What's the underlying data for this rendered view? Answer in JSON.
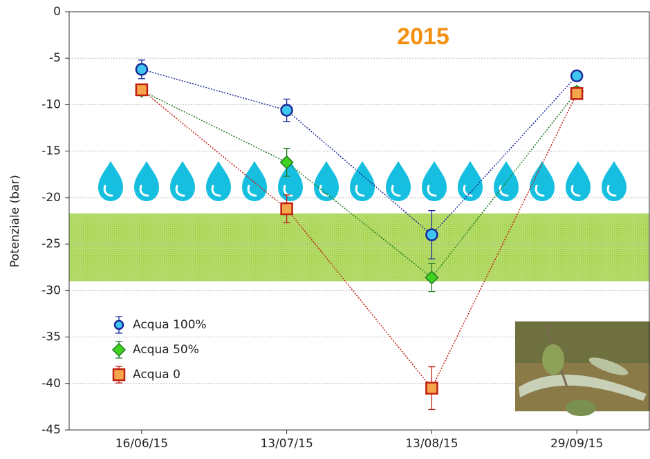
{
  "chart_data": {
    "type": "line",
    "title": "2015",
    "y_label": "Potenziale (bar)",
    "categories": [
      "16/06/15",
      "13/07/15",
      "13/08/15",
      "29/09/15"
    ],
    "series": [
      {
        "name": "Acqua 100%",
        "color": "#3ec6ee",
        "edge": "#1a2a9a",
        "marker": "circle",
        "values": [
          -6.2,
          -10.6,
          -24.0,
          -6.9
        ],
        "errors": [
          1.0,
          1.2,
          2.6,
          0.5
        ]
      },
      {
        "name": "Acqua 50%",
        "color": "#3fd21f",
        "edge": "#1f7a1f",
        "marker": "diamond",
        "values": [
          -8.5,
          -16.2,
          -28.6,
          -8.6
        ],
        "errors": [
          0.5,
          1.5,
          1.5,
          0.5
        ]
      },
      {
        "name": "Acqua 0",
        "color": "#f5a64a",
        "edge": "#c01e10",
        "marker": "square",
        "values": [
          -8.4,
          -21.2,
          -40.5,
          -8.8
        ],
        "errors": [
          0.5,
          1.5,
          2.3,
          0.5
        ]
      }
    ],
    "ylim": [
      -45,
      0
    ],
    "yticks": [
      0,
      -5,
      -10,
      -15,
      -20,
      -25,
      -30,
      -35,
      -40,
      -45
    ],
    "grid": true,
    "legend": "lower-left",
    "band": {
      "range": [
        -21.7,
        -29
      ],
      "color": "#9ccf3c"
    }
  }
}
